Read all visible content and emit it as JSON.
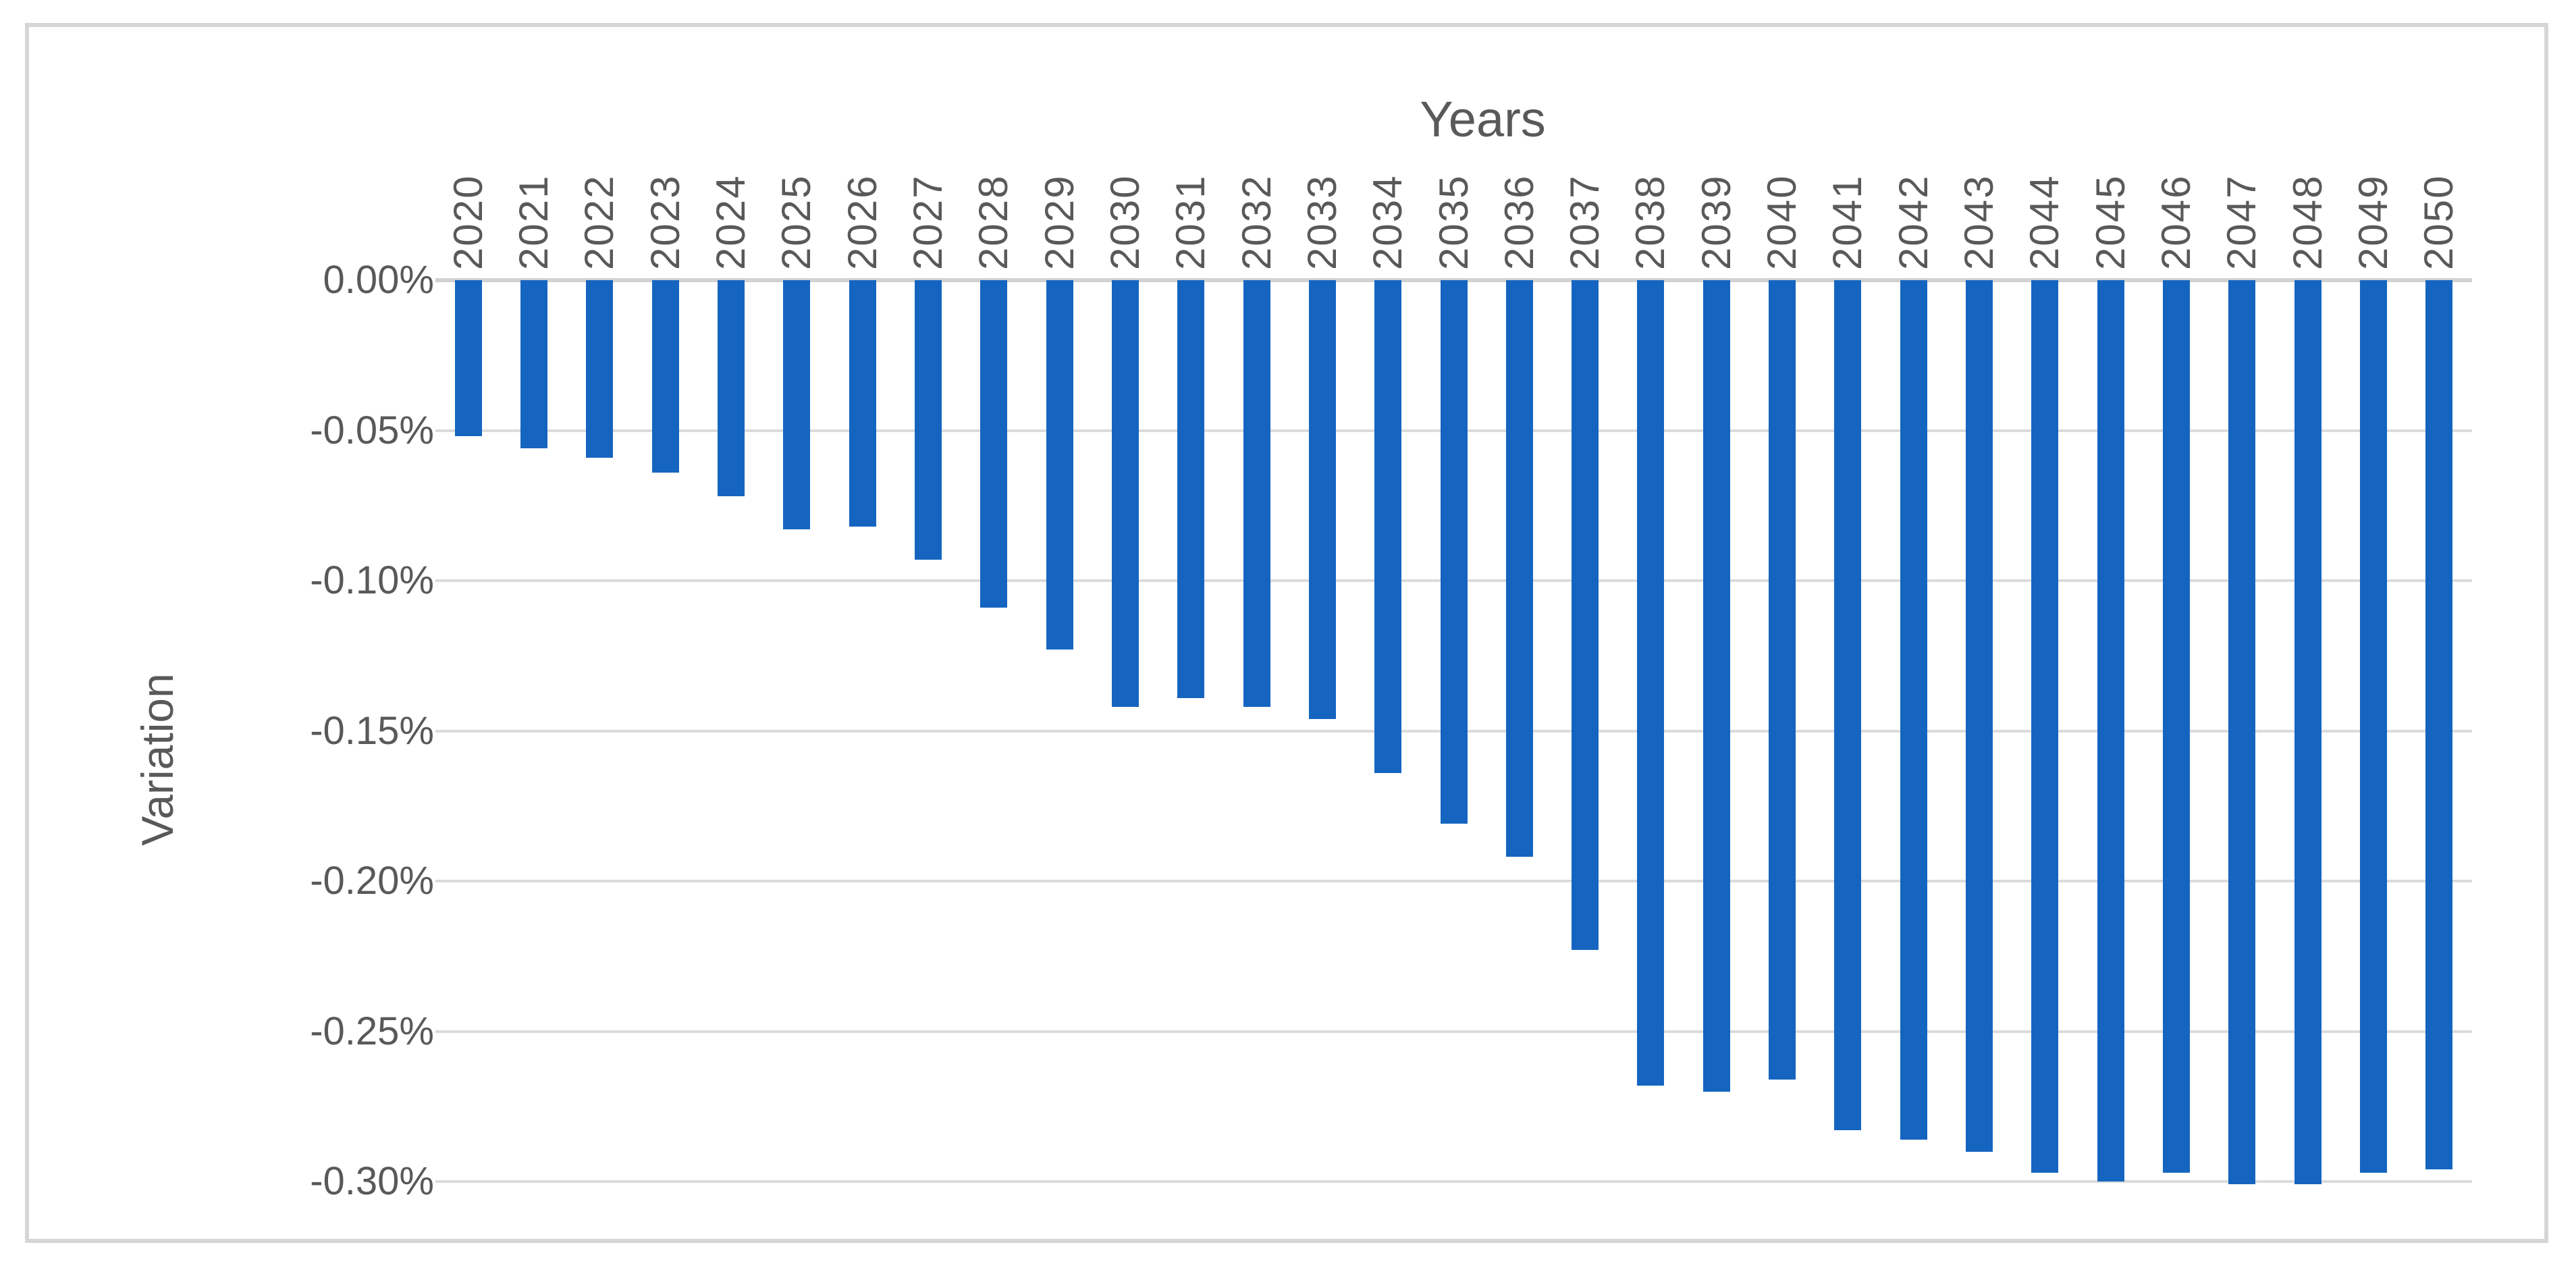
{
  "chart_data": {
    "type": "bar",
    "title": "Years",
    "xlabel": "Years",
    "ylabel": "Variation",
    "legend": "none",
    "grid": true,
    "value_unit": "percent",
    "ylim": [
      -0.3,
      0
    ],
    "categories": [
      "2020",
      "2021",
      "2022",
      "2023",
      "2024",
      "2025",
      "2026",
      "2027",
      "2028",
      "2029",
      "2030",
      "2031",
      "2032",
      "2033",
      "2034",
      "2035",
      "2036",
      "2037",
      "2038",
      "2039",
      "2040",
      "2041",
      "2042",
      "2043",
      "2044",
      "2045",
      "2046",
      "2047",
      "2048",
      "2049",
      "2050"
    ],
    "values": [
      -0.052,
      -0.056,
      -0.059,
      -0.064,
      -0.072,
      -0.083,
      -0.082,
      -0.093,
      -0.109,
      -0.123,
      -0.142,
      -0.139,
      -0.142,
      -0.146,
      -0.164,
      -0.181,
      -0.192,
      -0.223,
      -0.268,
      -0.27,
      -0.266,
      -0.283,
      -0.286,
      -0.29,
      -0.297,
      -0.3,
      -0.297,
      -0.301,
      -0.301,
      -0.297,
      -0.296
    ],
    "ytick_values": [
      0,
      -0.05,
      -0.1,
      -0.15,
      -0.2,
      -0.25,
      -0.3
    ],
    "ytick_labels": [
      "0.00%",
      "-0.05%",
      "-0.10%",
      "-0.15%",
      "-0.20%",
      "-0.25%",
      "-0.30%"
    ],
    "colors": {
      "bar": "#1565c0",
      "gridline": "#dbdbdb",
      "zero_axis_line": "#d2d2d2",
      "labels": "#595959",
      "frame_border": "#d6d6d6",
      "background": "#ffffff"
    }
  }
}
